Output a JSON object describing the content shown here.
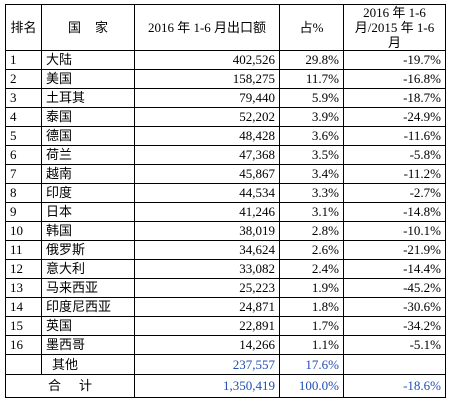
{
  "table": {
    "headers": {
      "rank": "排名",
      "country": "国家",
      "export": "2016 年 1-6 月出口额",
      "share": "占%",
      "yoy": "2016 年 1-6 月/2015 年 1-6 月"
    },
    "rows": [
      {
        "rank": "1",
        "country": "大陆",
        "export": "402,526",
        "share": "29.8%",
        "yoy": "-19.7%"
      },
      {
        "rank": "2",
        "country": "美国",
        "export": "158,275",
        "share": "11.7%",
        "yoy": "-16.8%"
      },
      {
        "rank": "3",
        "country": "土耳其",
        "export": "79,440",
        "share": "5.9%",
        "yoy": "-18.7%"
      },
      {
        "rank": "4",
        "country": "泰国",
        "export": "52,202",
        "share": "3.9%",
        "yoy": "-24.9%"
      },
      {
        "rank": "5",
        "country": "德国",
        "export": "48,428",
        "share": "3.6%",
        "yoy": "-11.6%"
      },
      {
        "rank": "6",
        "country": "荷兰",
        "export": "47,368",
        "share": "3.5%",
        "yoy": "-5.8%"
      },
      {
        "rank": "7",
        "country": "越南",
        "export": "45,867",
        "share": "3.4%",
        "yoy": "-11.2%"
      },
      {
        "rank": "8",
        "country": "印度",
        "export": "44,534",
        "share": "3.3%",
        "yoy": "-2.7%"
      },
      {
        "rank": "9",
        "country": "日本",
        "export": "41,246",
        "share": "3.1%",
        "yoy": "-14.8%"
      },
      {
        "rank": "10",
        "country": "韩国",
        "export": "38,019",
        "share": "2.8%",
        "yoy": "-10.1%"
      },
      {
        "rank": "11",
        "country": "俄罗斯",
        "export": "34,624",
        "share": "2.6%",
        "yoy": "-21.9%"
      },
      {
        "rank": "12",
        "country": "意大利",
        "export": "33,082",
        "share": "2.4%",
        "yoy": "-14.4%"
      },
      {
        "rank": "13",
        "country": "马来西亚",
        "export": "25,223",
        "share": "1.9%",
        "yoy": "-45.2%"
      },
      {
        "rank": "14",
        "country": "印度尼西亚",
        "export": "24,871",
        "share": "1.8%",
        "yoy": "-30.6%"
      },
      {
        "rank": "15",
        "country": "英国",
        "export": "22,891",
        "share": "1.7%",
        "yoy": "-34.2%"
      },
      {
        "rank": "16",
        "country": "墨西哥",
        "export": "14,266",
        "share": "1.1%",
        "yoy": "-5.1%"
      }
    ],
    "others": {
      "label": "其他",
      "export": "237,557",
      "share": "17.6%",
      "yoy": ""
    },
    "total": {
      "label": "合计",
      "export": "1,350,419",
      "share": "100.0%",
      "yoy": "-18.6%"
    }
  }
}
